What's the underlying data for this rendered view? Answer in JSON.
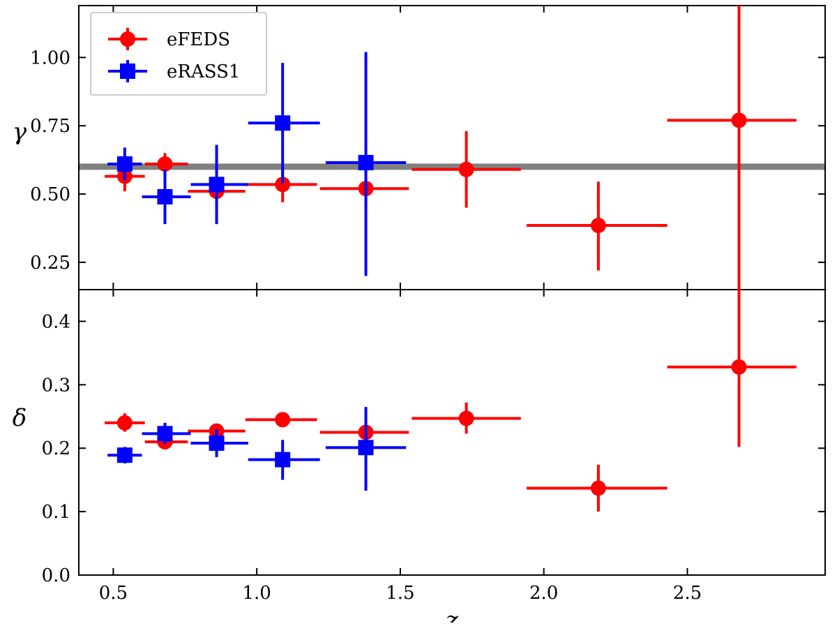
{
  "chart_data": {
    "type": "scatter",
    "xlabel": "z",
    "xlim": [
      0.38,
      2.98
    ],
    "xticks": [
      "0.5",
      "1.0",
      "1.5",
      "2.0",
      "2.5"
    ],
    "xtick_values": [
      0.5,
      1.0,
      1.5,
      2.0,
      2.5
    ],
    "legend": {
      "position": "top-left",
      "entries": [
        "eFEDS",
        "eRASS1"
      ]
    },
    "colors": {
      "eFEDS": "#ff0000",
      "eRASS1": "#0000ff",
      "reference": "#808080"
    },
    "panels": [
      {
        "id": "gamma",
        "ylabel": "γ",
        "ylim": [
          0.15,
          1.19
        ],
        "yticks": [
          "0.25",
          "0.50",
          "0.75",
          "1.00"
        ],
        "ytick_values": [
          0.25,
          0.5,
          0.75,
          1.0
        ],
        "reference_line": 0.6,
        "series": [
          {
            "name": "eFEDS",
            "marker": "circle",
            "points": [
              {
                "x": 0.54,
                "xlo": 0.47,
                "xhi": 0.61,
                "y": 0.565,
                "ylo": 0.51,
                "yhi": 0.62
              },
              {
                "x": 0.68,
                "xlo": 0.61,
                "xhi": 0.76,
                "y": 0.61,
                "ylo": 0.57,
                "yhi": 0.65
              },
              {
                "x": 0.86,
                "xlo": 0.76,
                "xhi": 0.96,
                "y": 0.51,
                "ylo": 0.46,
                "yhi": 0.56
              },
              {
                "x": 1.09,
                "xlo": 0.96,
                "xhi": 1.21,
                "y": 0.535,
                "ylo": 0.47,
                "yhi": 0.6
              },
              {
                "x": 1.38,
                "xlo": 1.22,
                "xhi": 1.53,
                "y": 0.52,
                "ylo": 0.45,
                "yhi": 0.59
              },
              {
                "x": 1.73,
                "xlo": 1.54,
                "xhi": 1.92,
                "y": 0.59,
                "ylo": 0.45,
                "yhi": 0.73
              },
              {
                "x": 2.19,
                "xlo": 1.94,
                "xhi": 2.43,
                "y": 0.385,
                "ylo": 0.22,
                "yhi": 0.545
              },
              {
                "x": 2.68,
                "xlo": 2.43,
                "xhi": 2.88,
                "y": 0.77,
                "ylo": 0.15,
                "yhi": 1.19
              }
            ]
          },
          {
            "name": "eRASS1",
            "marker": "square",
            "points": [
              {
                "x": 0.54,
                "xlo": 0.48,
                "xhi": 0.6,
                "y": 0.61,
                "ylo": 0.55,
                "yhi": 0.67
              },
              {
                "x": 0.68,
                "xlo": 0.6,
                "xhi": 0.77,
                "y": 0.49,
                "ylo": 0.39,
                "yhi": 0.59
              },
              {
                "x": 0.86,
                "xlo": 0.77,
                "xhi": 0.97,
                "y": 0.535,
                "ylo": 0.39,
                "yhi": 0.68
              },
              {
                "x": 1.09,
                "xlo": 0.97,
                "xhi": 1.22,
                "y": 0.76,
                "ylo": 0.54,
                "yhi": 0.98
              },
              {
                "x": 1.38,
                "xlo": 1.24,
                "xhi": 1.52,
                "y": 0.615,
                "ylo": 0.2,
                "yhi": 1.02
              }
            ]
          }
        ]
      },
      {
        "id": "delta",
        "ylabel": "δ",
        "ylim": [
          0.0,
          0.45
        ],
        "yticks": [
          "0.0",
          "0.1",
          "0.2",
          "0.3",
          "0.4"
        ],
        "ytick_values": [
          0.0,
          0.1,
          0.2,
          0.3,
          0.4
        ],
        "series": [
          {
            "name": "eFEDS",
            "marker": "circle",
            "points": [
              {
                "x": 0.54,
                "xlo": 0.47,
                "xhi": 0.61,
                "y": 0.24,
                "ylo": 0.226,
                "yhi": 0.255
              },
              {
                "x": 0.68,
                "xlo": 0.61,
                "xhi": 0.76,
                "y": 0.21,
                "ylo": 0.203,
                "yhi": 0.218
              },
              {
                "x": 0.86,
                "xlo": 0.76,
                "xhi": 0.96,
                "y": 0.227,
                "ylo": 0.219,
                "yhi": 0.236
              },
              {
                "x": 1.09,
                "xlo": 0.96,
                "xhi": 1.21,
                "y": 0.245,
                "ylo": 0.236,
                "yhi": 0.255
              },
              {
                "x": 1.38,
                "xlo": 1.22,
                "xhi": 1.53,
                "y": 0.225,
                "ylo": 0.21,
                "yhi": 0.24
              },
              {
                "x": 1.73,
                "xlo": 1.54,
                "xhi": 1.92,
                "y": 0.247,
                "ylo": 0.223,
                "yhi": 0.272
              },
              {
                "x": 2.19,
                "xlo": 1.94,
                "xhi": 2.43,
                "y": 0.137,
                "ylo": 0.1,
                "yhi": 0.174
              },
              {
                "x": 2.68,
                "xlo": 2.43,
                "xhi": 2.88,
                "y": 0.328,
                "ylo": 0.202,
                "yhi": 0.45
              }
            ]
          },
          {
            "name": "eRASS1",
            "marker": "square",
            "points": [
              {
                "x": 0.54,
                "xlo": 0.48,
                "xhi": 0.6,
                "y": 0.189,
                "ylo": 0.176,
                "yhi": 0.202
              },
              {
                "x": 0.68,
                "xlo": 0.6,
                "xhi": 0.77,
                "y": 0.223,
                "ylo": 0.207,
                "yhi": 0.24
              },
              {
                "x": 0.86,
                "xlo": 0.77,
                "xhi": 0.97,
                "y": 0.208,
                "ylo": 0.186,
                "yhi": 0.23
              },
              {
                "x": 1.09,
                "xlo": 0.97,
                "xhi": 1.22,
                "y": 0.182,
                "ylo": 0.15,
                "yhi": 0.213
              },
              {
                "x": 1.38,
                "xlo": 1.24,
                "xhi": 1.52,
                "y": 0.201,
                "ylo": 0.133,
                "yhi": 0.265
              }
            ]
          }
        ]
      }
    ]
  }
}
